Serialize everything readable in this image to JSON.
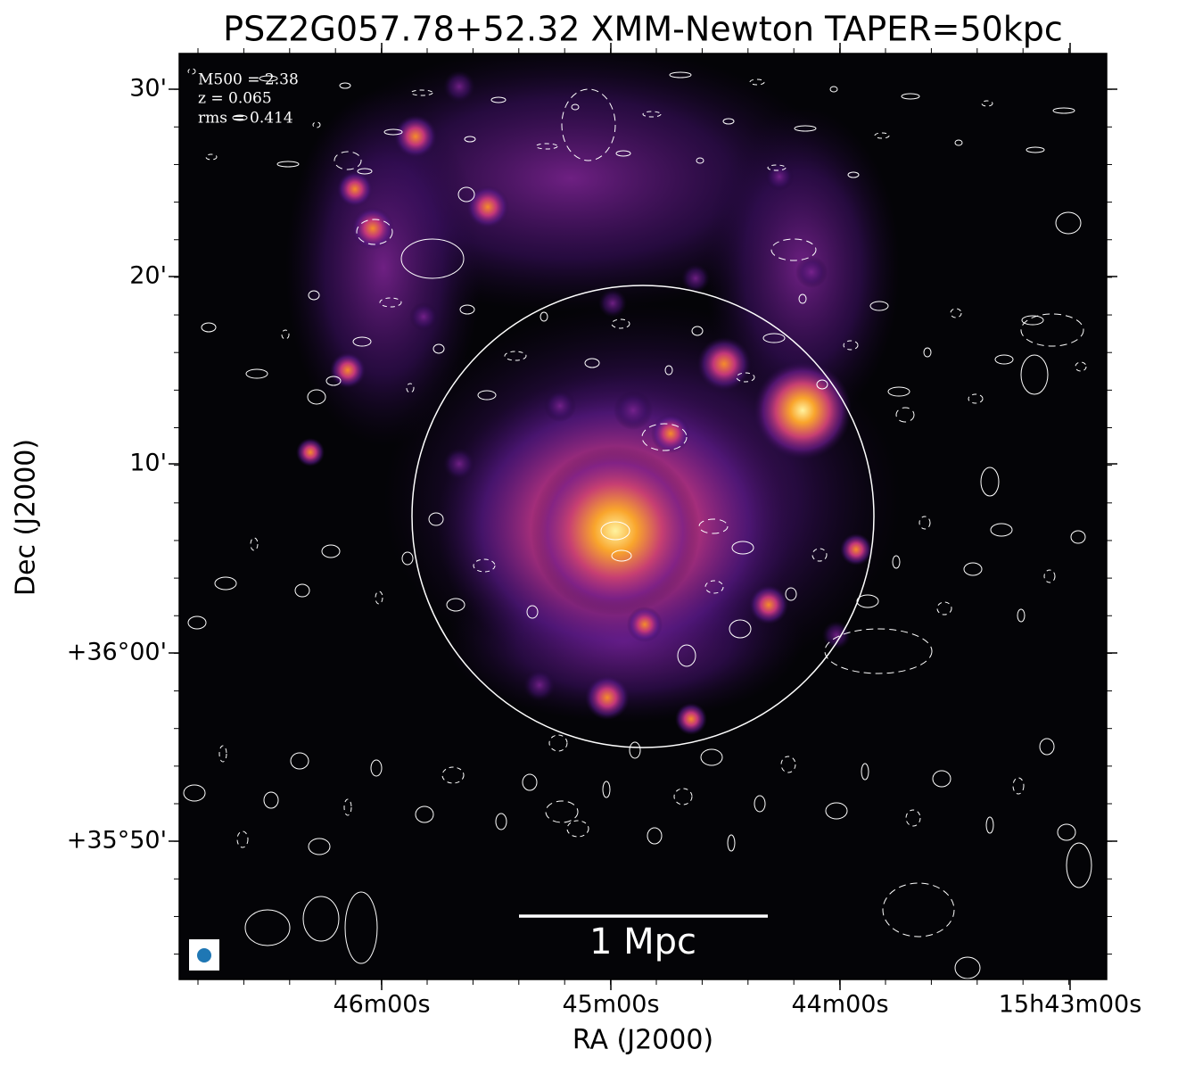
{
  "title": "PSZ2G057.78+52.32 XMM-Newton TAPER=50kpc",
  "x_axis": {
    "label": "RA (J2000)",
    "ticks": [
      "46m00s",
      "45m00s",
      "44m00s",
      "15h43m00s"
    ]
  },
  "y_axis": {
    "label": "Dec (J2000)",
    "ticks": [
      "30'",
      "20'",
      "10'",
      "+36°00'",
      "+35°50'"
    ]
  },
  "annotations": [
    "M500 = 2.38",
    "z = 0.065",
    "rms = 0.414"
  ],
  "scale_bar": "1 Mpc"
}
